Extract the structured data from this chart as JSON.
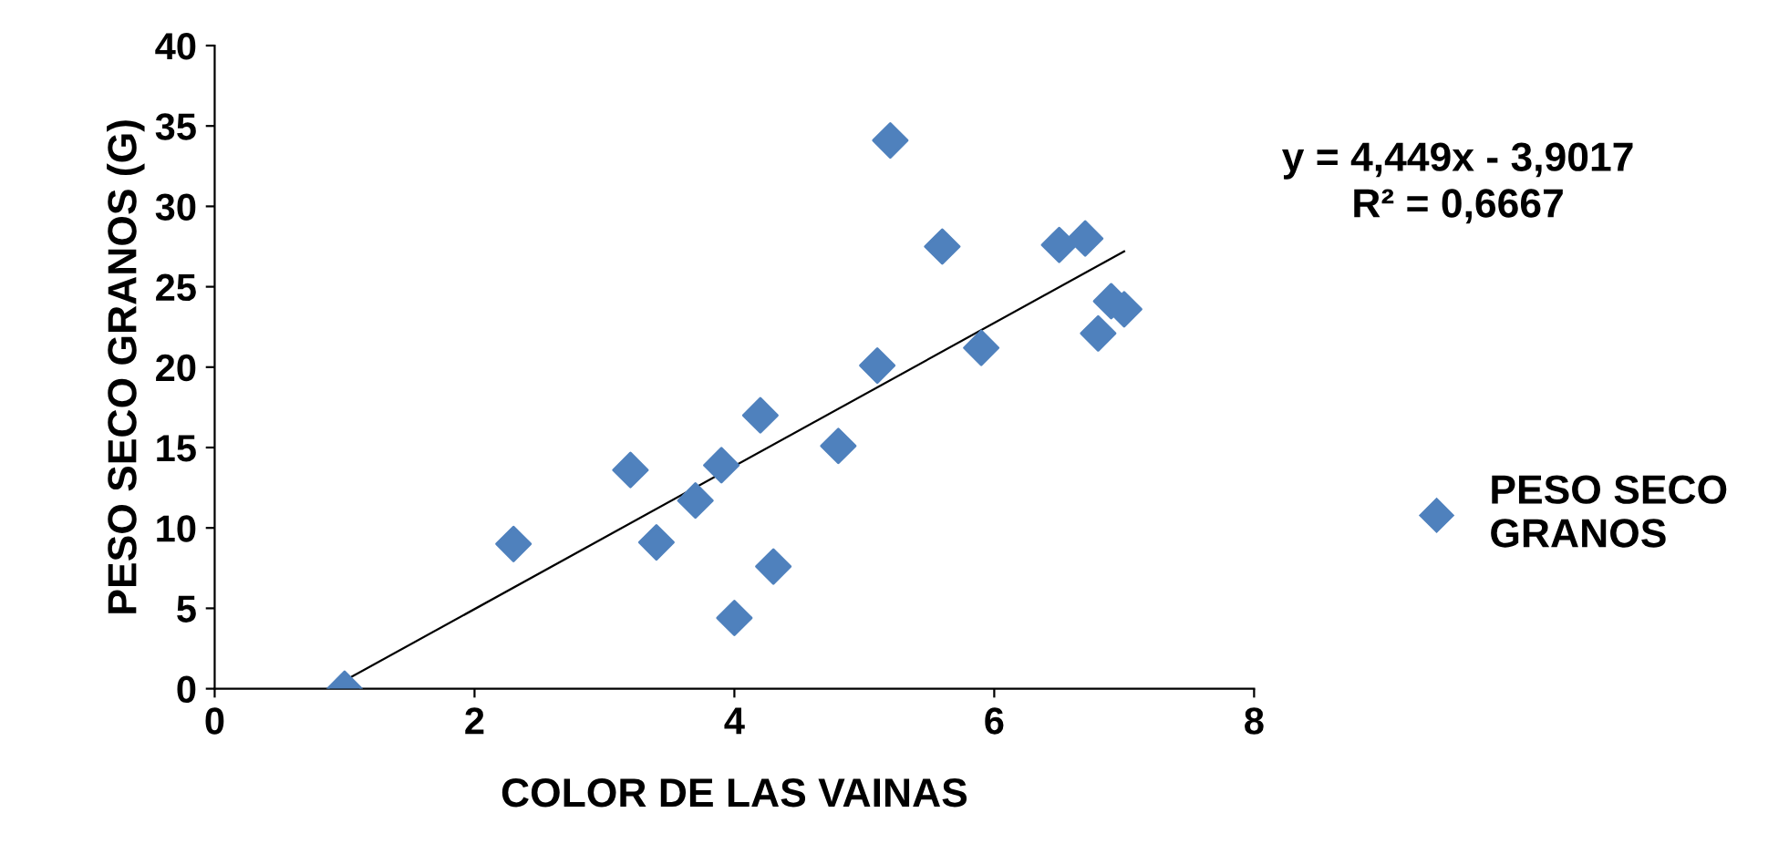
{
  "chart_data": {
    "type": "scatter",
    "xlabel": "COLOR DE LAS VAINAS",
    "ylabel": "PESO SECO GRANOS (G)",
    "annotations": [
      "y = 4,449x - 3,9017",
      "R² = 0,6667"
    ],
    "xlim": [
      0,
      8
    ],
    "xticks": [
      0,
      2,
      4,
      6,
      8
    ],
    "ylim": [
      0,
      40
    ],
    "yticks": [
      0,
      5,
      10,
      15,
      20,
      25,
      30,
      35,
      40
    ],
    "grid": false,
    "legend": "right",
    "series": [
      {
        "name": "PESO SECO GRANOS",
        "marker": "diamond",
        "color": "#4f81bd",
        "x": [
          1,
          2.3,
          3.2,
          3.4,
          3.7,
          3.9,
          4.0,
          4.2,
          4.3,
          4.8,
          5.1,
          5.2,
          5.6,
          5.9,
          6.5,
          6.7,
          6.8,
          6.9,
          7.0
        ],
        "values": [
          0,
          9,
          13.6,
          9.1,
          11.7,
          13.9,
          4.4,
          17.0,
          7.6,
          15.1,
          20.1,
          34.1,
          27.5,
          21.2,
          27.6,
          28.0,
          22.1,
          24.1,
          23.6
        ]
      },
      {
        "type": "line",
        "marker": "none",
        "color": "#000000",
        "x": [
          1,
          7
        ],
        "values": [
          0.5,
          27.2
        ]
      }
    ]
  }
}
